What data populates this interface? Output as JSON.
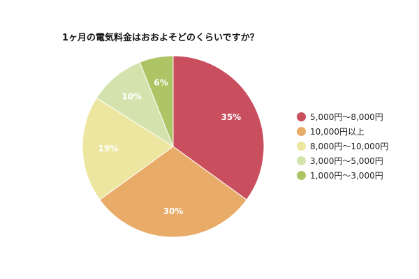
{
  "chart_data": {
    "type": "pie",
    "title": "1ヶ月の電気料金はおおよそどのくらいですか？",
    "legend_position": "right",
    "slices": [
      {
        "name": "5,000円〜8,000円",
        "value": 35,
        "label": "35%",
        "color": "#c94f5f"
      },
      {
        "name": "10,000円以上",
        "value": 30,
        "label": "30%",
        "color": "#e8ab68"
      },
      {
        "name": "8,000円〜10,000円",
        "value": 19,
        "label": "19%",
        "color": "#ede6a0"
      },
      {
        "name": "3,000円〜5,000円",
        "value": 10,
        "label": "10%",
        "color": "#d4e3ad"
      },
      {
        "name": "1,000円〜3,000円",
        "value": 6,
        "label": "6%",
        "color": "#adc565"
      }
    ]
  }
}
